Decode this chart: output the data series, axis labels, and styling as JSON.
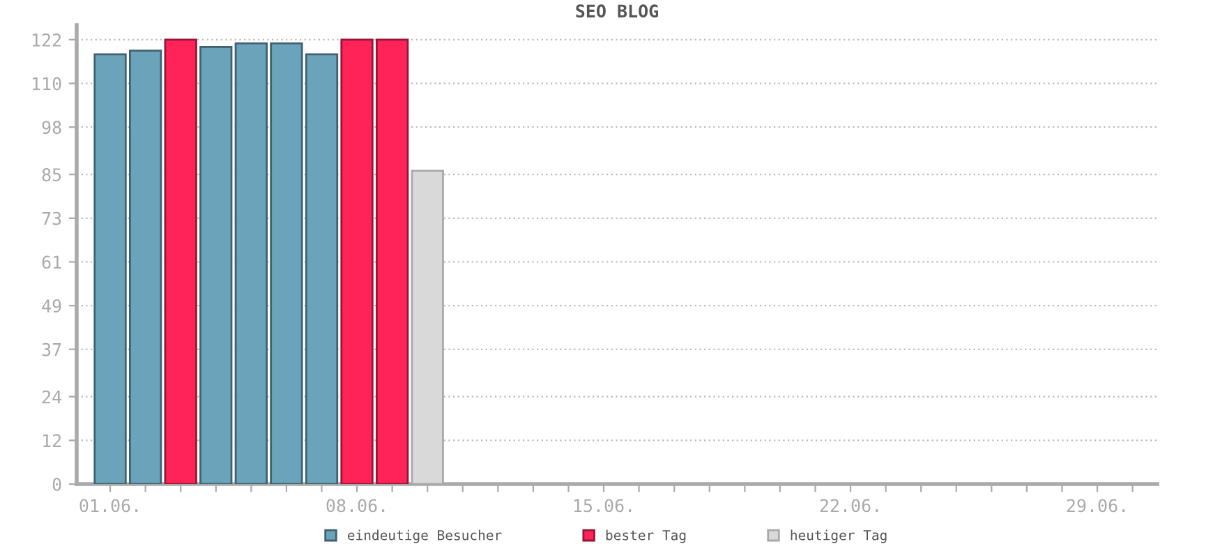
{
  "chart_data": {
    "type": "bar",
    "title": "SEO BLOG",
    "categories": [
      "01.06.",
      null,
      null,
      null,
      null,
      null,
      null,
      "08.06.",
      null,
      null,
      null,
      null,
      null,
      null,
      "15.06.",
      null,
      null,
      null,
      null,
      null,
      null,
      "22.06.",
      null,
      null,
      null,
      null,
      null,
      null,
      "29.06.",
      null
    ],
    "series": [
      {
        "name": "eindeutige Besucher",
        "color": "#6ba3bb",
        "values": [
          118,
          119,
          null,
          120,
          121,
          121,
          118,
          null,
          null,
          null,
          null,
          null,
          null,
          null,
          null,
          null,
          null,
          null,
          null,
          null,
          null,
          null,
          null,
          null,
          null,
          null,
          null,
          null,
          null,
          null
        ]
      },
      {
        "name": "bester Tag",
        "color": "#ff2358",
        "values": [
          null,
          null,
          122,
          null,
          null,
          null,
          null,
          122,
          122,
          null,
          null,
          null,
          null,
          null,
          null,
          null,
          null,
          null,
          null,
          null,
          null,
          null,
          null,
          null,
          null,
          null,
          null,
          null,
          null,
          null
        ]
      },
      {
        "name": "heutiger Tag",
        "color": "#d9d9d9",
        "values": [
          null,
          null,
          null,
          null,
          null,
          null,
          null,
          null,
          null,
          86,
          null,
          null,
          null,
          null,
          null,
          null,
          null,
          null,
          null,
          null,
          null,
          null,
          null,
          null,
          null,
          null,
          null,
          null,
          null,
          null
        ]
      }
    ],
    "ylim": [
      0,
      126
    ],
    "yticks": [
      0,
      12,
      24,
      37,
      49,
      61,
      73,
      85,
      98,
      110,
      122
    ],
    "grid": "y",
    "legend": "bottom"
  }
}
